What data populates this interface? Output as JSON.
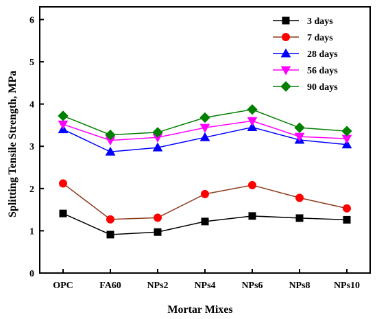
{
  "chart_data": {
    "type": "line",
    "xlabel": "Mortar Mixes",
    "ylabel": "Splitting Tensile Strength, MPa",
    "categories": [
      "OPC",
      "FA60",
      "NPs2",
      "NPs4",
      "NPs6",
      "NPs8",
      "NPs10"
    ],
    "ylim": [
      0,
      6.3
    ],
    "yticks": [
      0,
      1,
      2,
      3,
      4,
      5,
      6
    ],
    "grid": false,
    "legend_position": "top-right",
    "series": [
      {
        "name": "3 days",
        "values": [
          1.41,
          0.91,
          0.97,
          1.22,
          1.35,
          1.3,
          1.26
        ],
        "color": "#000000",
        "marker": "square"
      },
      {
        "name": "7 days",
        "values": [
          2.12,
          1.27,
          1.31,
          1.87,
          2.08,
          1.78,
          1.53
        ],
        "color": "#ff0000",
        "line_color": "#8b3a1a",
        "marker": "circle"
      },
      {
        "name": "28 days",
        "values": [
          3.4,
          2.87,
          2.97,
          3.21,
          3.45,
          3.15,
          3.04
        ],
        "color": "#0000ff",
        "marker": "triangle-up"
      },
      {
        "name": "56 days",
        "values": [
          3.52,
          3.14,
          3.21,
          3.44,
          3.6,
          3.23,
          3.18
        ],
        "color": "#ff00ff",
        "marker": "triangle-down"
      },
      {
        "name": "90 days",
        "values": [
          3.72,
          3.27,
          3.33,
          3.68,
          3.87,
          3.44,
          3.36
        ],
        "color": "#008000",
        "marker": "diamond"
      }
    ]
  }
}
